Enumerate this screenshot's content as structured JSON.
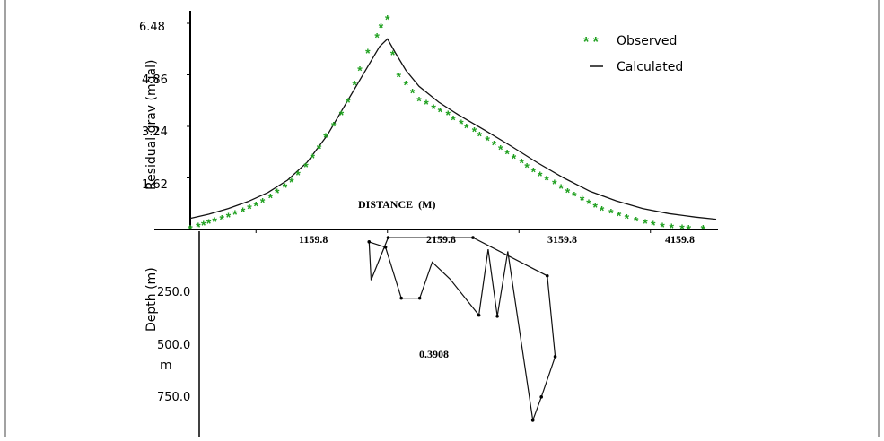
{
  "chart_data": [
    {
      "type": "line",
      "title": "",
      "ylabel": "Residual grav (mgal)",
      "xlabel": "DISTANCE  (M)",
      "ylim": [
        0,
        6.48
      ],
      "xlim": [
        659.8,
        4659.8
      ],
      "yticks": [
        "1.62",
        "3.24",
        "4.86",
        "6.48"
      ],
      "xticks": [
        "1159.8",
        "2159.8",
        "3159.8",
        "4159.8"
      ],
      "legend": {
        "position": "top-right",
        "observed": "Observed",
        "calculated": "Calculated"
      },
      "series": [
        {
          "name": "Observed",
          "style": "green-asterisk",
          "color": "#1fa01f",
          "x": [
            660,
            720,
            760,
            800,
            845,
            900,
            950,
            1000,
            1060,
            1110,
            1160,
            1210,
            1270,
            1320,
            1380,
            1430,
            1480,
            1540,
            1590,
            1640,
            1690,
            1750,
            1810,
            1860,
            1910,
            1950,
            2010,
            2080,
            2110,
            2160,
            2200,
            2245,
            2300,
            2350,
            2400,
            2455,
            2510,
            2560,
            2620,
            2660,
            2720,
            2760,
            2820,
            2860,
            2920,
            2970,
            3020,
            3070,
            3120,
            3180,
            3220,
            3270,
            3320,
            3370,
            3430,
            3480,
            3530,
            3580,
            3640,
            3690,
            3740,
            3790,
            3860,
            3920,
            3980,
            4050,
            4120,
            4180,
            4250,
            4320,
            4400,
            4450,
            4560
          ],
          "values": [
            0.02,
            0.09,
            0.14,
            0.2,
            0.26,
            0.32,
            0.4,
            0.48,
            0.57,
            0.66,
            0.75,
            0.86,
            1.0,
            1.15,
            1.32,
            1.5,
            1.72,
            1.97,
            2.25,
            2.55,
            2.9,
            3.25,
            3.6,
            4.0,
            4.55,
            5.0,
            5.55,
            6.05,
            6.35,
            6.6,
            5.5,
            4.8,
            4.55,
            4.3,
            4.05,
            3.95,
            3.8,
            3.7,
            3.6,
            3.45,
            3.33,
            3.2,
            3.08,
            2.95,
            2.8,
            2.66,
            2.52,
            2.38,
            2.24,
            2.1,
            1.96,
            1.82,
            1.69,
            1.56,
            1.43,
            1.3,
            1.17,
            1.05,
            0.93,
            0.82,
            0.71,
            0.61,
            0.52,
            0.43,
            0.35,
            0.27,
            0.2,
            0.14,
            0.09,
            0.05,
            0.03,
            0.02,
            0.01
          ]
        },
        {
          "name": "Calculated",
          "style": "solid-line",
          "color": "#111111",
          "x": [
            659.8,
            800,
            950,
            1100,
            1250,
            1400,
            1550,
            1700,
            1850,
            2000,
            2100,
            2159.8,
            2220,
            2300,
            2400,
            2550,
            2700,
            2900,
            3100,
            3300,
            3500,
            3700,
            3900,
            4100,
            4300,
            4500,
            4659.8
          ],
          "values": [
            0.35,
            0.48,
            0.66,
            0.88,
            1.16,
            1.55,
            2.12,
            2.95,
            4.0,
            5.05,
            5.75,
            5.99,
            5.55,
            5.0,
            4.5,
            4.0,
            3.6,
            3.12,
            2.62,
            2.1,
            1.62,
            1.2,
            0.9,
            0.66,
            0.5,
            0.39,
            0.32
          ]
        }
      ]
    },
    {
      "type": "line",
      "title": "",
      "ylabel": "Depth (m)",
      "ylabel_unit": "m",
      "yticks": [
        "250.0",
        "500.0",
        "750.0"
      ],
      "ylim": [
        0,
        1000
      ],
      "xlim": [
        659.8,
        4659.8
      ],
      "annotation": "0.3908",
      "series": [
        {
          "name": "",
          "style": "closed-polygon",
          "color": "#000000",
          "x": [
            2020,
            2145,
            2265,
            2405,
            2500,
            2635,
            2855,
            2925,
            2995,
            3075,
            3265,
            3330,
            3435,
            3375,
            2810,
            2165,
            2035
          ],
          "values": [
            50,
            75,
            315,
            315,
            145,
            225,
            395,
            85,
            400,
            95,
            890,
            780,
            590,
            210,
            30,
            30,
            230
          ],
          "vertex_markers": [
            50,
            75,
            315,
            395,
            400,
            780,
            890,
            590,
            210,
            30
          ]
        }
      ]
    }
  ]
}
